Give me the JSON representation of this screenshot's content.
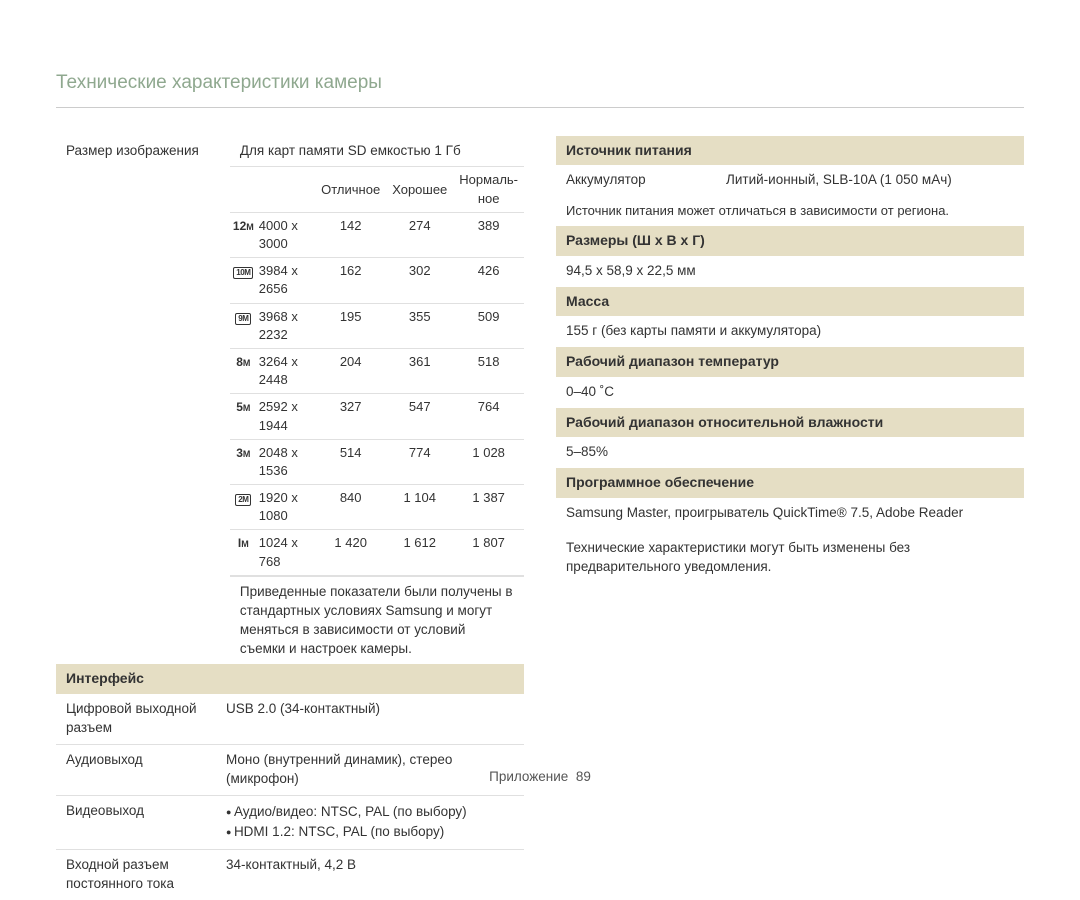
{
  "title": "Технические характеристики камеры",
  "left": {
    "image_size_label": "Размер изображения",
    "sd_caption": "Для карт памяти SD емкостью 1 Гб",
    "quality_headers": [
      "Отличное",
      "Хорошее",
      "Нормаль-\nное"
    ],
    "rows": [
      {
        "icon": "12M",
        "style": "bold",
        "res": "4000 x 3000",
        "vals": [
          "142",
          "274",
          "389"
        ]
      },
      {
        "icon": "10M",
        "style": "box",
        "res": "3984 x 2656",
        "vals": [
          "162",
          "302",
          "426"
        ]
      },
      {
        "icon": "9M",
        "style": "box",
        "res": "3968 x 2232",
        "vals": [
          "195",
          "355",
          "509"
        ]
      },
      {
        "icon": "8M",
        "style": "bold",
        "res": "3264 x 2448",
        "vals": [
          "204",
          "361",
          "518"
        ]
      },
      {
        "icon": "5M",
        "style": "bold",
        "res": "2592 x 1944",
        "vals": [
          "327",
          "547",
          "764"
        ]
      },
      {
        "icon": "3M",
        "style": "bold",
        "res": "2048 x 1536",
        "vals": [
          "514",
          "774",
          "1 028"
        ]
      },
      {
        "icon": "2M",
        "style": "box",
        "res": "1920 x 1080",
        "vals": [
          "840",
          "1 104",
          "1 387"
        ]
      },
      {
        "icon": "1M",
        "style": "bold",
        "res": "1024 x 768",
        "vals": [
          "1 420",
          "1 612",
          "1 807"
        ]
      }
    ],
    "size_note": "Приведенные показатели были получены в стандартных условиях Samsung и могут меняться в зависимости от условий съемки и настроек камеры.",
    "interface_header": "Интерфейс",
    "interface_rows": [
      {
        "label": "Цифровой выходной разъем",
        "value": "USB 2.0 (34-контактный)"
      },
      {
        "label": "Аудиовыход",
        "value": "Моно (внутренний динамик), стерео (микрофон)"
      },
      {
        "label": "Видеовыход",
        "bullets": [
          "Аудио/видео: NTSC, PAL (по выбору)",
          "HDMI 1.2: NTSC, PAL (по выбору)"
        ]
      },
      {
        "label": "Входной разъем постоянного тока",
        "value": "34-контактный, 4,2 В"
      }
    ]
  },
  "right": {
    "power_header": "Источник питания",
    "power_label": "Аккумулятор",
    "power_value": "Литий-ионный, SLB-10A (1 050 мАч)",
    "power_note": "Источник питания может отличаться в зависимости от региона.",
    "dim_header": "Размеры (Ш x В x Г)",
    "dim_value": "94,5 x 58,9 x 22,5 мм",
    "mass_header": "Масса",
    "mass_value": "155 г (без карты памяти и аккумулятора)",
    "temp_header": "Рабочий диапазон температур",
    "temp_value": "0–40 ˚C",
    "hum_header": "Рабочий диапазон относительной влажности",
    "hum_value": "5–85%",
    "soft_header": "Программное обеспечение",
    "soft_value": "Samsung Master, проигрыватель QuickTime® 7.5, Adobe Reader",
    "disclaimer": "Технические характеристики могут быть изменены без предварительного уведомления."
  },
  "footer": {
    "label": "Приложение",
    "page": "89"
  },
  "colors": {
    "title": "#8fa88f",
    "header_bg": "#e5dec4",
    "border": "#e0e0e0"
  }
}
